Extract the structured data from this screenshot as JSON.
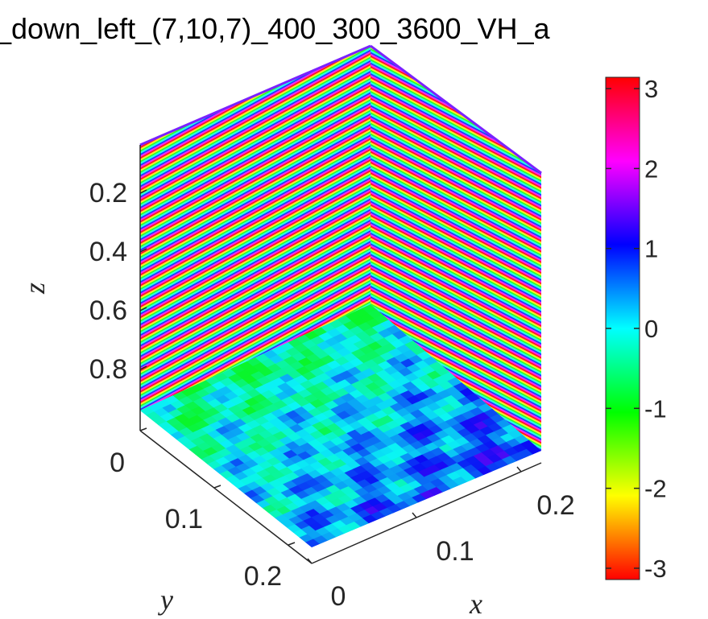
{
  "chart_data": {
    "type": "heatmap",
    "title": "_down_left_(7,10,7)_400_300_3600_VH_a",
    "xlabel": "x",
    "ylabel": "y",
    "zlabel": "z",
    "x_ticks": [
      "0",
      "0.1",
      "0.2"
    ],
    "y_ticks": [
      "0",
      "0.1",
      "0.2"
    ],
    "z_ticks": [
      "0.2",
      "0.4",
      "0.6",
      "0.8"
    ],
    "z_reversed": true,
    "colorbar": {
      "colormap": "hsv",
      "range": [
        -3.14159,
        3.14159
      ],
      "ticks": [
        "3",
        "2",
        "1",
        "0",
        "-1",
        "-2",
        "-3"
      ]
    },
    "panels": [
      {
        "name": "back wall (x–z)",
        "pattern": "horizontal phase stripes cycling through the full colormap"
      },
      {
        "name": "side wall (y–z)",
        "pattern": "horizontal phase stripes cycling through the full colormap"
      },
      {
        "name": "floor (x–y)",
        "pattern": "noisy phase field with values mostly between about -0.7 and 1.3"
      }
    ]
  }
}
